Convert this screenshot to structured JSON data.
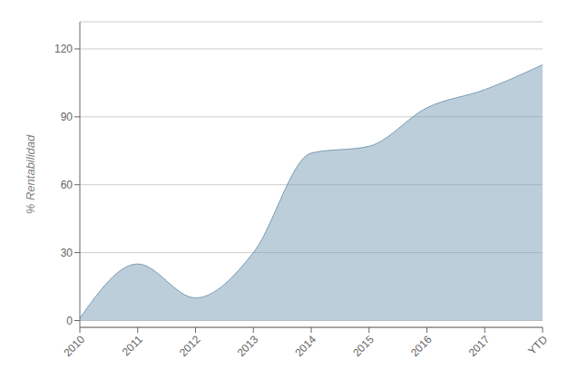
{
  "chart_data": {
    "type": "area",
    "categories": [
      "2010",
      "2011",
      "2012",
      "2013",
      "2014",
      "2015",
      "2016",
      "2017",
      "YTD"
    ],
    "values": [
      1.0,
      25.0,
      10.0,
      30.0,
      74.0,
      77.0,
      94.0,
      102.0,
      113.0
    ],
    "color": "#7a9db5",
    "ylabel": "% Rentabilidad",
    "ylim": [
      -3,
      132
    ],
    "yticks": [
      0,
      30,
      60,
      90,
      120
    ],
    "grid": true
  }
}
